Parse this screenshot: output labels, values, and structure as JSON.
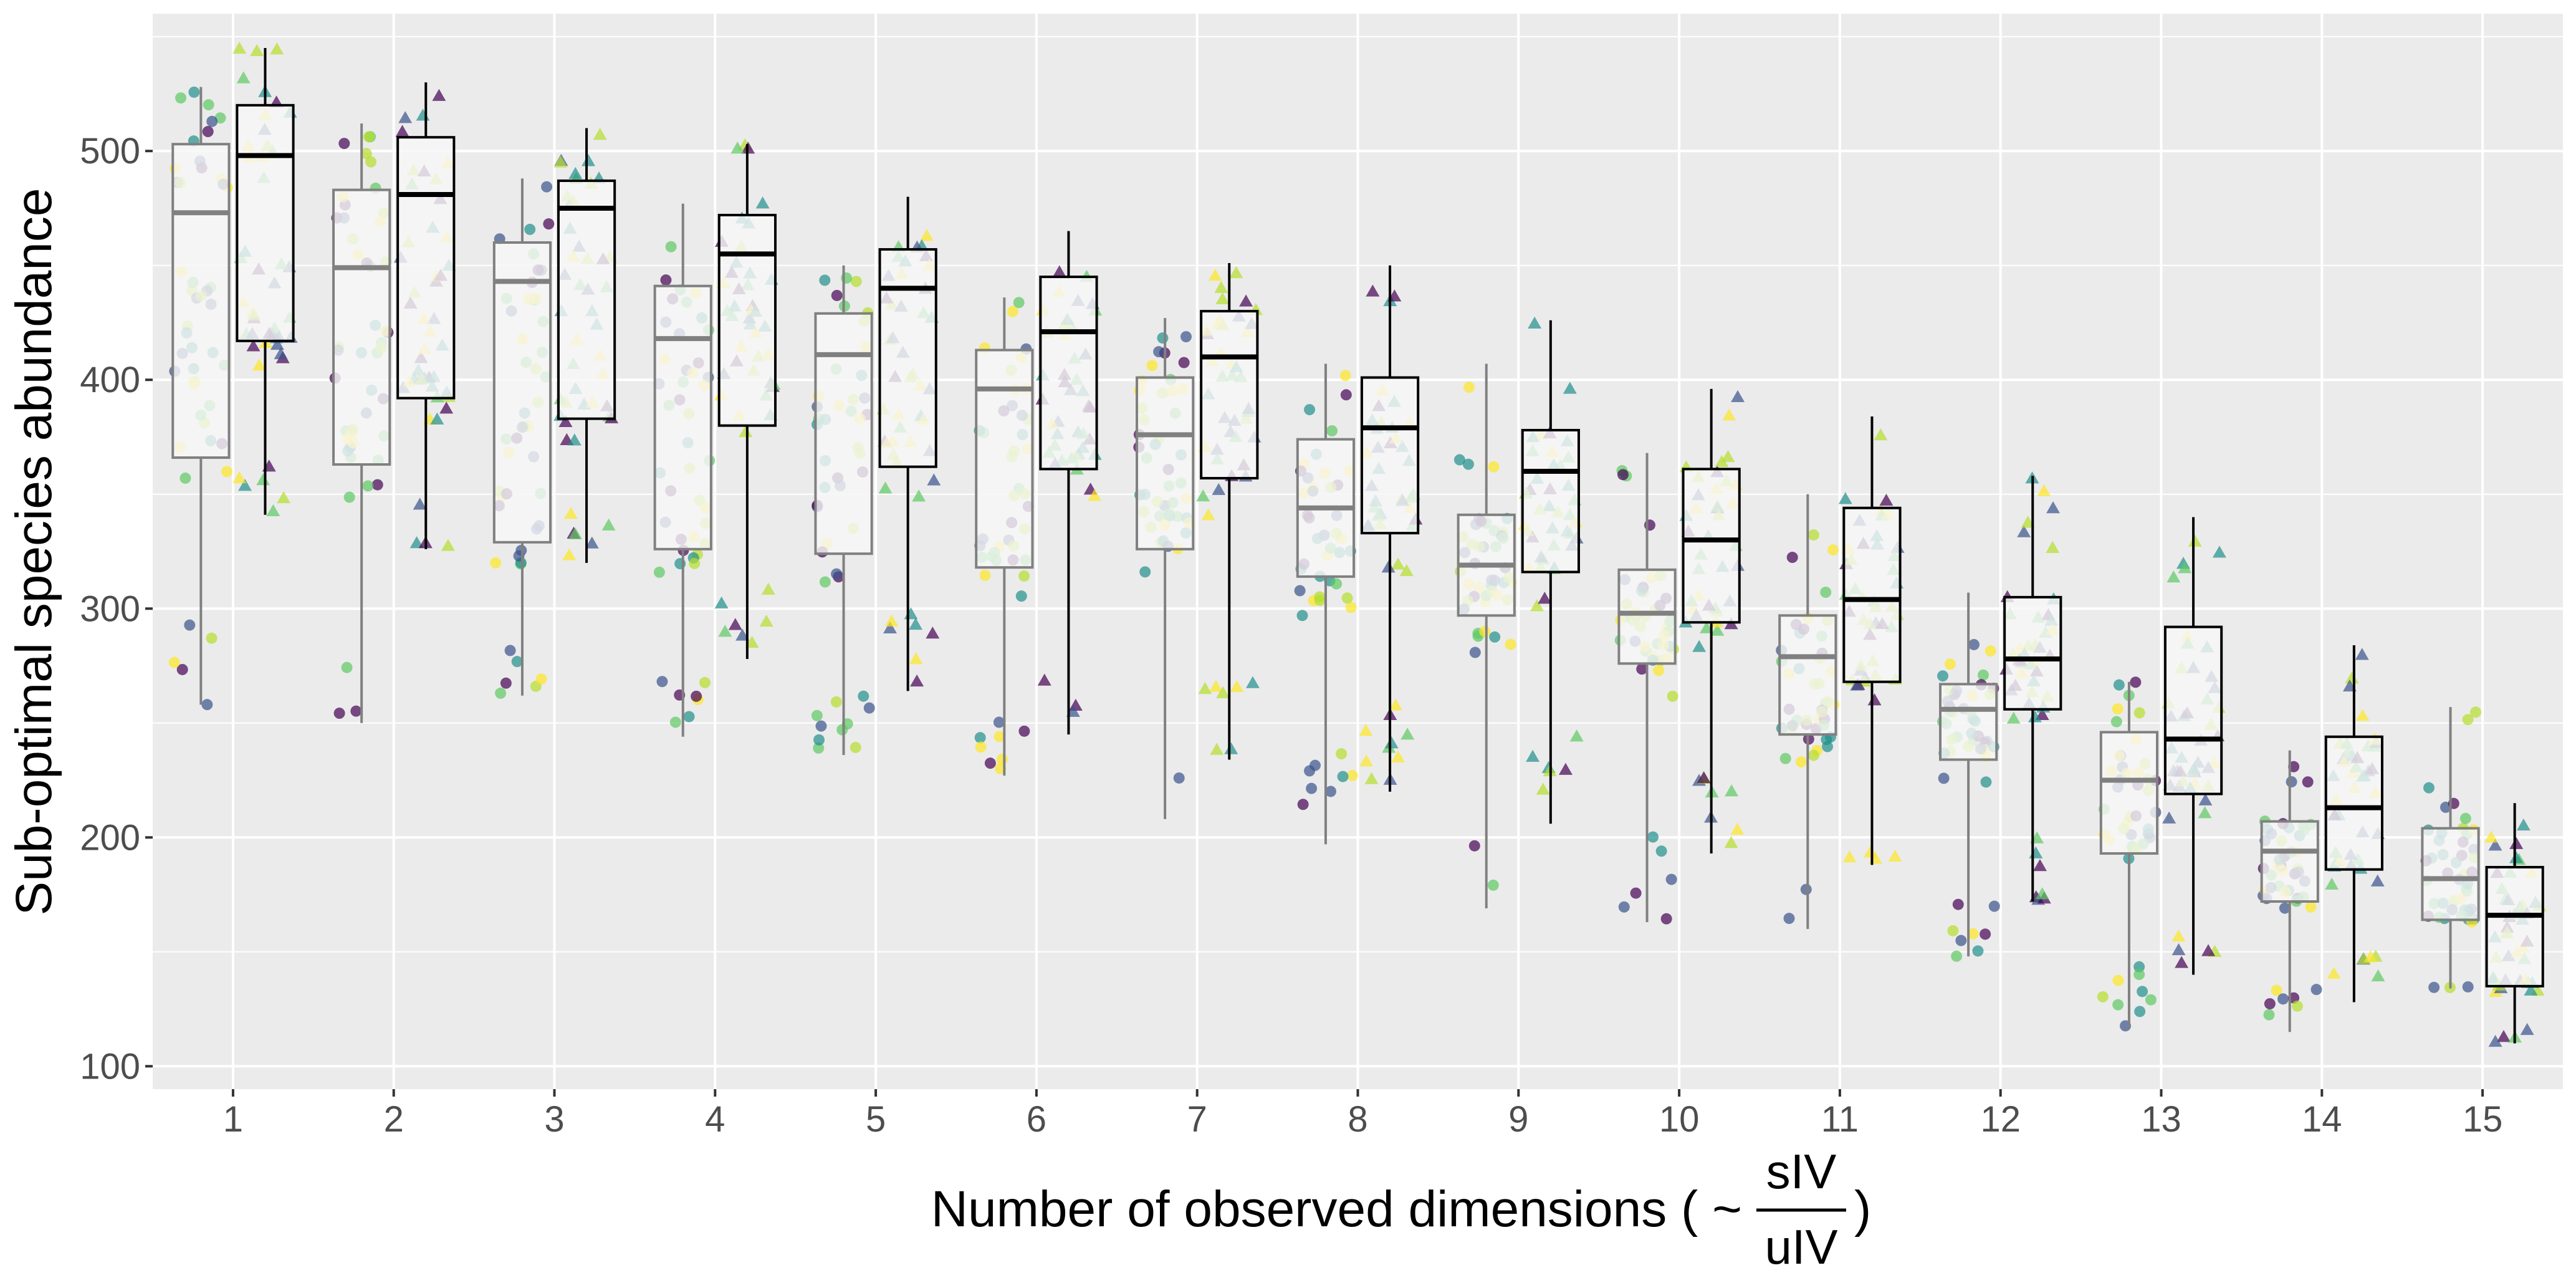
{
  "chart_data": {
    "type": "box",
    "xlabel": "Number of observed dimensions ( ~",
    "xlabel_fraction": {
      "numerator": "sIV",
      "denominator": "uIV",
      "close": ")"
    },
    "ylabel": "Sub-optimal species abundance",
    "ylim": [
      90,
      560
    ],
    "yticks": [
      100,
      200,
      300,
      400,
      500
    ],
    "categories": [
      "1",
      "2",
      "3",
      "4",
      "5",
      "6",
      "7",
      "8",
      "9",
      "10",
      "11",
      "12",
      "13",
      "14",
      "15"
    ],
    "grid": true,
    "colors": {
      "panel": "#ebebeb",
      "grid_major": "#ffffff",
      "box_fill": "#f7f7f7",
      "series_a_stroke": "#808080",
      "series_b_stroke": "#000000",
      "points": [
        "#440154",
        "#3b528b",
        "#21908c",
        "#5ec962",
        "#b5de2b",
        "#fde725"
      ]
    },
    "series": [
      {
        "marker": "circle",
        "boxes": [
          {
            "min": 258,
            "q1": 366,
            "median": 473,
            "q3": 503,
            "max": 528
          },
          {
            "min": 250,
            "q1": 363,
            "median": 449,
            "q3": 483,
            "max": 512
          },
          {
            "min": 262,
            "q1": 329,
            "median": 443,
            "q3": 460,
            "max": 488
          },
          {
            "min": 244,
            "q1": 326,
            "median": 418,
            "q3": 441,
            "max": 477
          },
          {
            "min": 236,
            "q1": 324,
            "median": 411,
            "q3": 429,
            "max": 450
          },
          {
            "min": 227,
            "q1": 318,
            "median": 396,
            "q3": 413,
            "max": 436
          },
          {
            "min": 208,
            "q1": 326,
            "median": 376,
            "q3": 401,
            "max": 427
          },
          {
            "min": 197,
            "q1": 314,
            "median": 344,
            "q3": 374,
            "max": 407
          },
          {
            "min": 169,
            "q1": 297,
            "median": 319,
            "q3": 341,
            "max": 407
          },
          {
            "min": 163,
            "q1": 276,
            "median": 298,
            "q3": 317,
            "max": 368
          },
          {
            "min": 160,
            "q1": 245,
            "median": 279,
            "q3": 297,
            "max": 350
          },
          {
            "min": 148,
            "q1": 234,
            "median": 256,
            "q3": 267,
            "max": 307
          },
          {
            "min": 117,
            "q1": 193,
            "median": 225,
            "q3": 246,
            "max": 268
          },
          {
            "min": 115,
            "q1": 172,
            "median": 194,
            "q3": 207,
            "max": 238
          },
          {
            "min": 134,
            "q1": 164,
            "median": 182,
            "q3": 204,
            "max": 257
          }
        ]
      },
      {
        "marker": "triangle",
        "boxes": [
          {
            "min": 341,
            "q1": 417,
            "median": 498,
            "q3": 520,
            "max": 545
          },
          {
            "min": 326,
            "q1": 392,
            "median": 481,
            "q3": 506,
            "max": 530
          },
          {
            "min": 320,
            "q1": 383,
            "median": 475,
            "q3": 487,
            "max": 510
          },
          {
            "min": 278,
            "q1": 380,
            "median": 455,
            "q3": 472,
            "max": 503
          },
          {
            "min": 264,
            "q1": 362,
            "median": 440,
            "q3": 457,
            "max": 480
          },
          {
            "min": 245,
            "q1": 361,
            "median": 421,
            "q3": 445,
            "max": 465
          },
          {
            "min": 234,
            "q1": 357,
            "median": 410,
            "q3": 430,
            "max": 451
          },
          {
            "min": 220,
            "q1": 333,
            "median": 379,
            "q3": 401,
            "max": 450
          },
          {
            "min": 206,
            "q1": 316,
            "median": 360,
            "q3": 378,
            "max": 426
          },
          {
            "min": 193,
            "q1": 294,
            "median": 330,
            "q3": 361,
            "max": 396
          },
          {
            "min": 188,
            "q1": 268,
            "median": 304,
            "q3": 344,
            "max": 384
          },
          {
            "min": 172,
            "q1": 256,
            "median": 278,
            "q3": 305,
            "max": 358
          },
          {
            "min": 140,
            "q1": 219,
            "median": 243,
            "q3": 292,
            "max": 340
          },
          {
            "min": 128,
            "q1": 186,
            "median": 213,
            "q3": 244,
            "max": 284
          },
          {
            "min": 110,
            "q1": 135,
            "median": 166,
            "q3": 187,
            "max": 215
          }
        ]
      }
    ]
  }
}
